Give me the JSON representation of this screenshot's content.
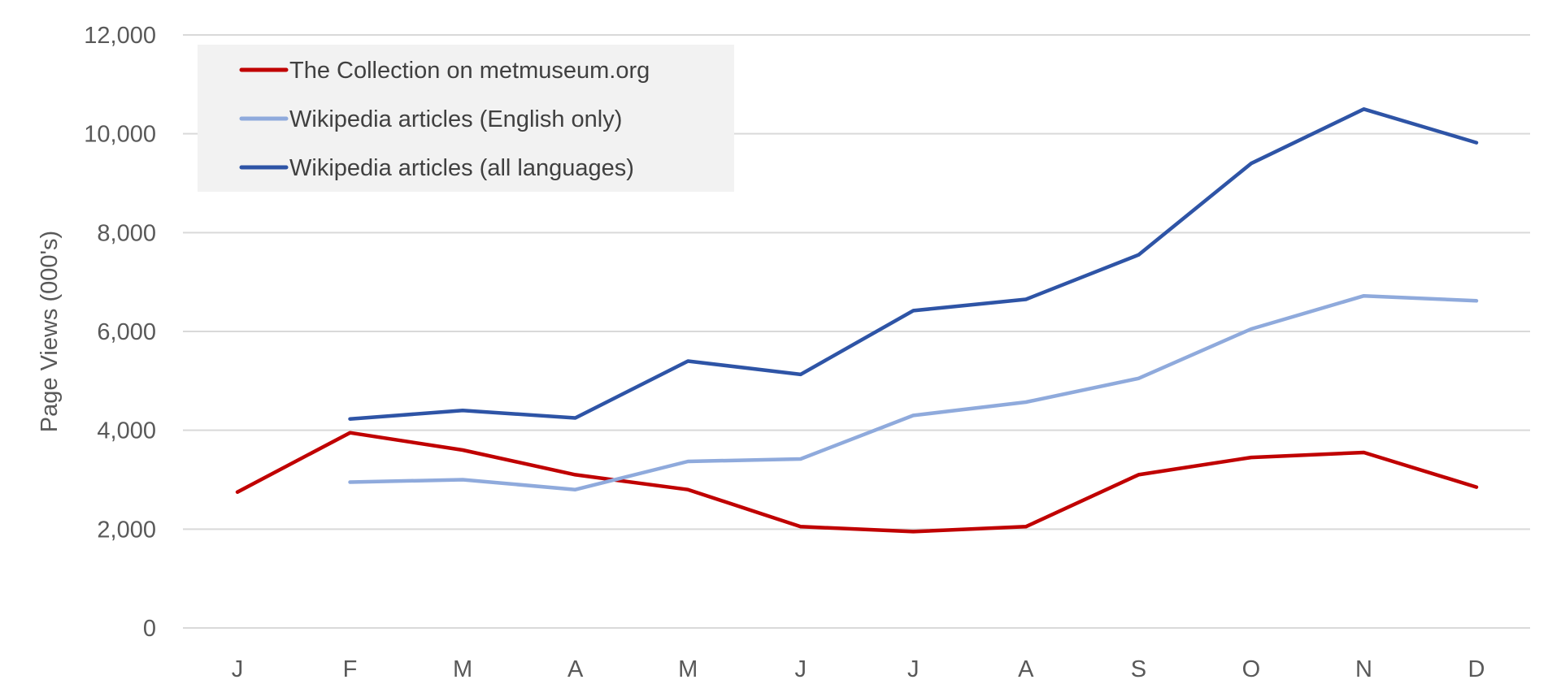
{
  "chart_data": {
    "type": "line",
    "title": "",
    "xlabel": "",
    "ylabel": "Page Views (000's)",
    "categories": [
      "J",
      "F",
      "M",
      "A",
      "M",
      "J",
      "J",
      "A",
      "S",
      "O",
      "N",
      "D"
    ],
    "ylim": [
      0,
      12000
    ],
    "yticks": [
      0,
      2000,
      4000,
      6000,
      8000,
      10000,
      12000
    ],
    "ytick_labels": [
      "0",
      "2,000",
      "4,000",
      "6,000",
      "8,000",
      "10,000",
      "12,000"
    ],
    "grid": true,
    "legend_position": "top-left",
    "series": [
      {
        "name": "The Collection on metmuseum.org",
        "color": "#c00000",
        "values": [
          2750,
          3950,
          3600,
          3100,
          2800,
          2050,
          1950,
          2050,
          3100,
          3450,
          3550,
          2850
        ]
      },
      {
        "name": "Wikipedia articles (English only)",
        "color": "#8faadc",
        "values": [
          null,
          2950,
          3000,
          2800,
          3370,
          3420,
          4300,
          4570,
          5050,
          6050,
          6720,
          6620
        ]
      },
      {
        "name": "Wikipedia articles (all languages)",
        "color": "#2e54a6",
        "values": [
          null,
          4230,
          4400,
          4250,
          5400,
          5130,
          6420,
          6650,
          7550,
          9400,
          10500,
          9820
        ]
      }
    ]
  }
}
